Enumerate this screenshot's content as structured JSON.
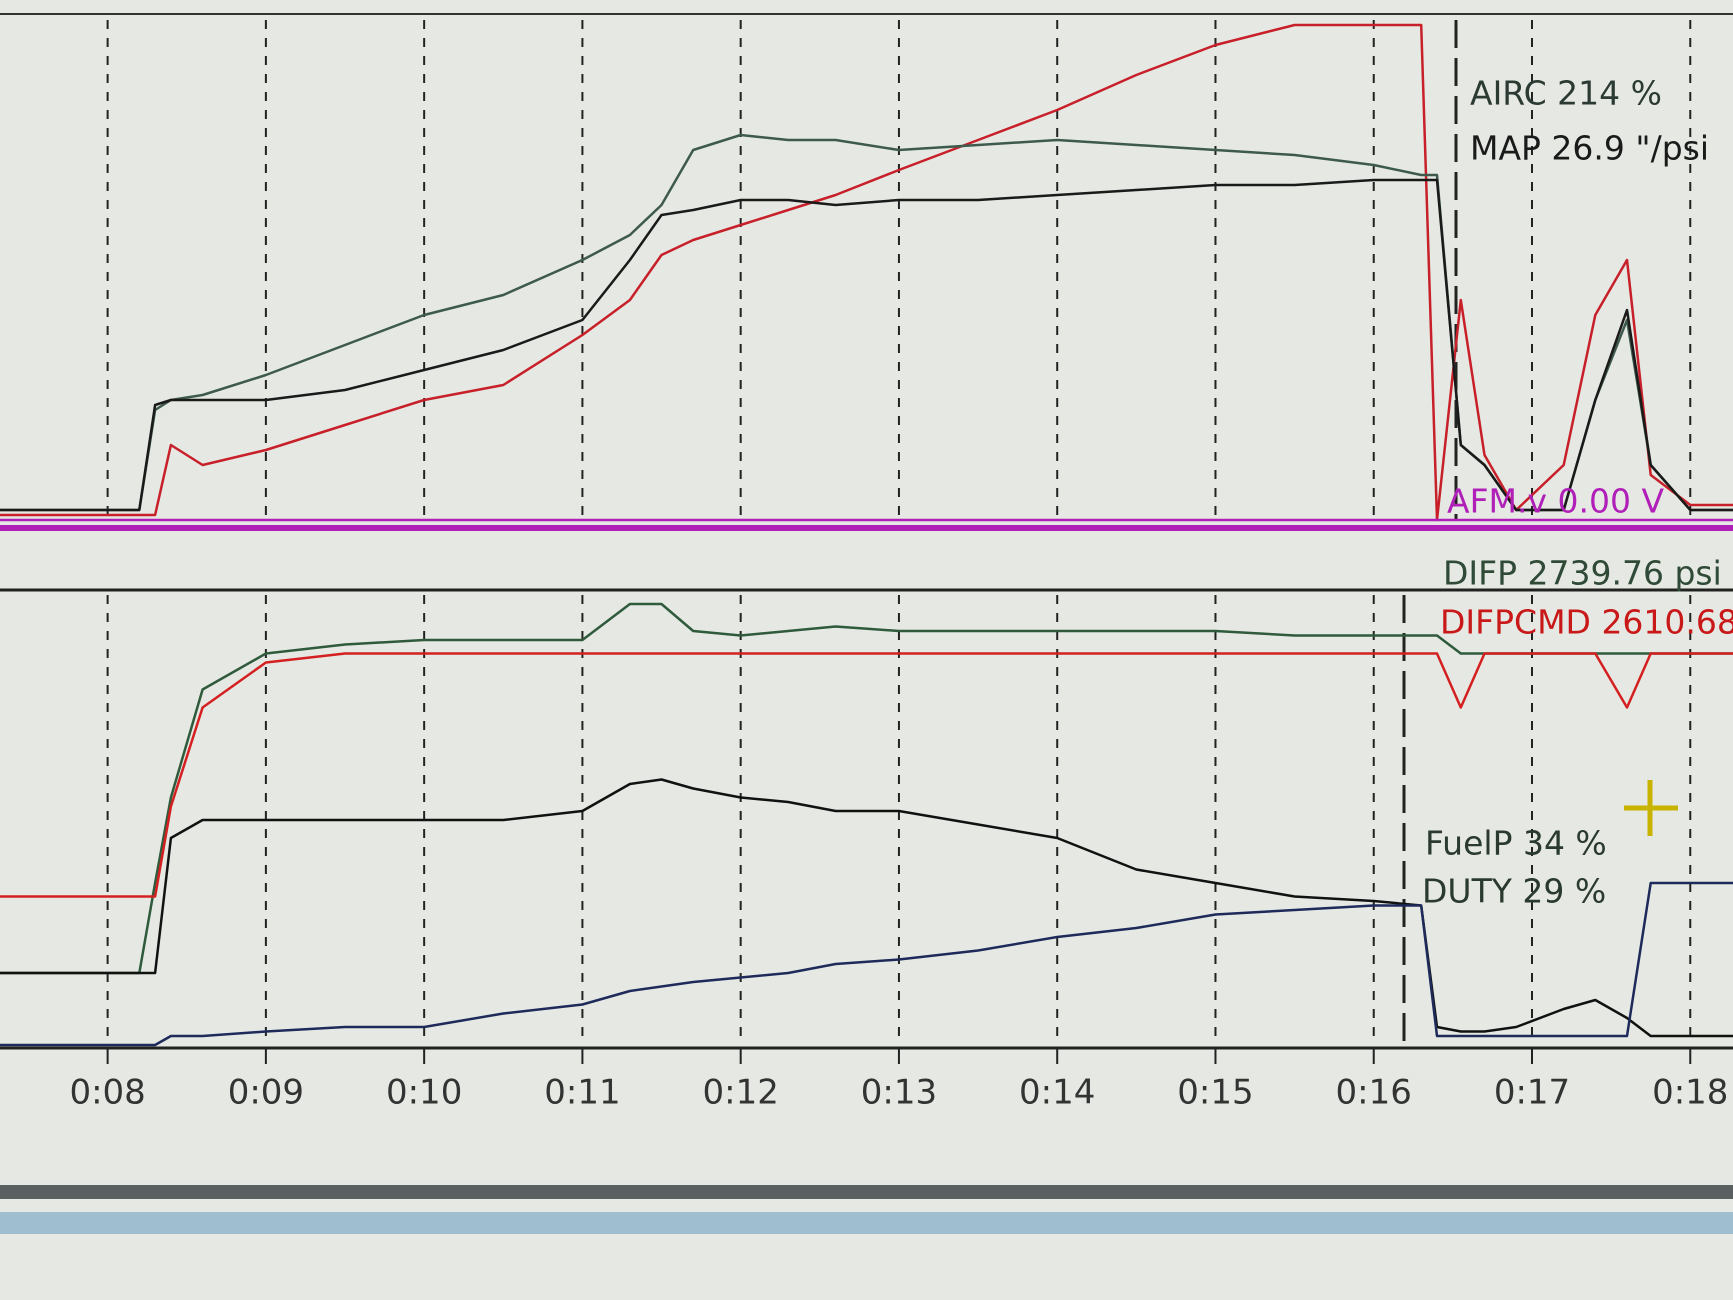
{
  "chart_data": [
    {
      "type": "line",
      "x": [
        7.32,
        8.2,
        8.3,
        8.4,
        8.6,
        9.0,
        9.5,
        10.0,
        10.5,
        11.0,
        11.3,
        11.5,
        11.7,
        12.0,
        12.3,
        12.6,
        13.0,
        13.5,
        14.0,
        14.5,
        15.0,
        15.5,
        16.0,
        16.3,
        16.4,
        16.55,
        16.7,
        16.9,
        17.2,
        17.4,
        17.6,
        17.75,
        18.0,
        18.27
      ],
      "xlim": [
        7.32,
        18.27
      ],
      "ylim": [
        0,
        100
      ],
      "xticks": [
        8,
        9,
        10,
        11,
        12,
        13,
        14,
        15,
        16,
        17,
        18
      ],
      "grid": true,
      "series": [
        {
          "color": "#c8202a",
          "values": [
            1,
            1,
            1,
            15,
            11,
            14,
            19,
            24,
            27,
            37,
            44,
            53,
            56,
            59,
            62,
            65,
            70,
            76,
            82,
            89,
            95,
            99,
            99,
            99,
            0,
            44,
            13,
            2,
            11,
            41,
            52,
            9,
            3,
            3
          ]
        },
        {
          "name": "AIRC 214 %",
          "color": "#3d5a4c",
          "values": [
            2,
            2,
            22,
            24,
            25,
            29,
            35,
            41,
            45,
            52,
            57,
            63,
            74,
            77,
            76,
            76,
            74,
            75,
            76,
            75,
            74,
            73,
            71,
            69,
            69,
            15,
            11,
            2,
            2,
            24,
            40,
            11,
            2,
            2
          ]
        },
        {
          "name": "MAP 26.9 \"/psi",
          "color": "#1a1a1a",
          "values": [
            2,
            2,
            23,
            24,
            24,
            24,
            26,
            30,
            34,
            40,
            52,
            61,
            62,
            64,
            64,
            63,
            64,
            64,
            65,
            66,
            67,
            67,
            68,
            68,
            68,
            15,
            11,
            2,
            2,
            24,
            42,
            11,
            2,
            2
          ]
        },
        {
          "name": "AFM.v 0.00 V",
          "color": "#b020b8",
          "values": [
            0,
            0,
            0,
            0,
            0,
            0,
            0,
            0,
            0,
            0,
            0,
            0,
            0,
            0,
            0,
            0,
            0,
            0,
            0,
            0,
            0,
            0,
            0,
            0,
            0,
            0,
            0,
            0,
            0,
            0,
            0,
            0,
            0,
            0
          ]
        }
      ]
    },
    {
      "type": "line",
      "x": [
        7.32,
        8.2,
        8.3,
        8.4,
        8.6,
        9.0,
        9.5,
        10.0,
        10.5,
        11.0,
        11.3,
        11.5,
        11.7,
        12.0,
        12.3,
        12.6,
        13.0,
        13.5,
        14.0,
        14.5,
        15.0,
        15.5,
        16.0,
        16.3,
        16.4,
        16.55,
        16.7,
        16.9,
        17.2,
        17.4,
        17.6,
        17.75,
        18.0,
        18.27
      ],
      "xlim": [
        7.32,
        18.27
      ],
      "ylim": [
        0,
        100
      ],
      "xticks": [
        {
          "value": 8,
          "label": "0:08"
        },
        {
          "value": 9,
          "label": "0:09"
        },
        {
          "value": 10,
          "label": "0:10"
        },
        {
          "value": 11,
          "label": "0:11"
        },
        {
          "value": 12,
          "label": "0:12"
        },
        {
          "value": 13,
          "label": "0:13"
        },
        {
          "value": 14,
          "label": "0:14"
        },
        {
          "value": 15,
          "label": "0:15"
        },
        {
          "value": 16,
          "label": "0:16"
        },
        {
          "value": 17,
          "label": "0:17"
        },
        {
          "value": 18,
          "label": "0:18"
        }
      ],
      "grid": true,
      "series": [
        {
          "name": "DIFP 2739.76 psi",
          "color": "#2f5a3c",
          "values": [
            16,
            16,
            36,
            55,
            79,
            87,
            89,
            90,
            90,
            90,
            98,
            98,
            92,
            91,
            92,
            93,
            92,
            92,
            92,
            92,
            92,
            91,
            91,
            91,
            91,
            87,
            87,
            87,
            87,
            87,
            87,
            87,
            87,
            87
          ]
        },
        {
          "name": "DIFPCMD 2610.68",
          "color": "#d42020",
          "values": [
            33,
            33,
            33,
            53,
            75,
            85,
            87,
            87,
            87,
            87,
            87,
            87,
            87,
            87,
            87,
            87,
            87,
            87,
            87,
            87,
            87,
            87,
            87,
            87,
            87,
            75,
            87,
            87,
            87,
            87,
            75,
            87,
            87,
            87
          ]
        },
        {
          "name": "FuelP 34 %",
          "color": "#111111",
          "values": [
            16,
            16,
            16,
            46,
            50,
            50,
            50,
            50,
            50,
            52,
            58,
            59,
            57,
            55,
            54,
            52,
            52,
            49,
            46,
            39,
            36,
            33,
            32,
            31,
            4,
            3,
            3,
            4,
            8,
            10,
            6,
            2,
            2,
            2
          ]
        },
        {
          "name": "DUTY 29 %",
          "color": "#1e2a5a",
          "values": [
            0,
            0,
            0,
            2,
            2,
            3,
            4,
            4,
            7,
            9,
            12,
            13,
            14,
            15,
            16,
            18,
            19,
            21,
            24,
            26,
            29,
            30,
            31,
            31,
            2,
            2,
            2,
            2,
            2,
            2,
            2,
            36,
            36,
            36
          ]
        }
      ]
    }
  ]
}
